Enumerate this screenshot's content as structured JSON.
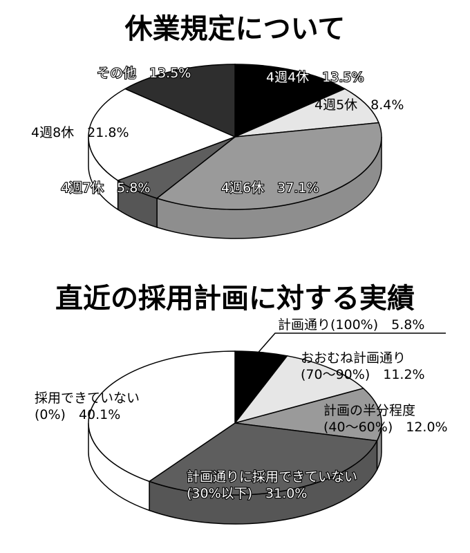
{
  "chart_data": [
    {
      "type": "pie",
      "title": "休業規定について",
      "slices": [
        {
          "name": "4週4休",
          "value": 13.5,
          "label": "13.5%",
          "color": "#000000"
        },
        {
          "name": "4週5休",
          "value": 8.4,
          "label": "8.4%",
          "color": "#e6e6e6"
        },
        {
          "name": "4週6休",
          "value": 37.1,
          "label": "37.1%",
          "color": "#9a9a9a"
        },
        {
          "name": "4週7休",
          "value": 5.8,
          "label": "5.8%",
          "color": "#5e5e5e"
        },
        {
          "name": "4週8休",
          "value": 21.8,
          "label": "21.8%",
          "color": "#ffffff"
        },
        {
          "name": "その他",
          "value": 13.5,
          "label": "13.5%",
          "color": "#2e2e2e"
        }
      ]
    },
    {
      "type": "pie",
      "title": "直近の採用計画に対する実績",
      "slices": [
        {
          "name": "計画通り(100%)",
          "value": 5.8,
          "label": "5.8%",
          "color": "#000000"
        },
        {
          "name": "おおむね計画通り",
          "sub": "(70～90%)",
          "value": 11.2,
          "label": "11.2%",
          "color": "#e6e6e6"
        },
        {
          "name": "計画の半分程度",
          "sub": "(40～60%)",
          "value": 12.0,
          "label": "12.0%",
          "color": "#9a9a9a"
        },
        {
          "name": "計画通りに採用できていない",
          "sub": "(30%以下)",
          "value": 31.0,
          "label": "31.0%",
          "color": "#5e5e5e"
        },
        {
          "name": "採用できていない",
          "sub": "(0%)",
          "value": 40.1,
          "label": "40.1%",
          "color": "#ffffff"
        }
      ]
    }
  ]
}
